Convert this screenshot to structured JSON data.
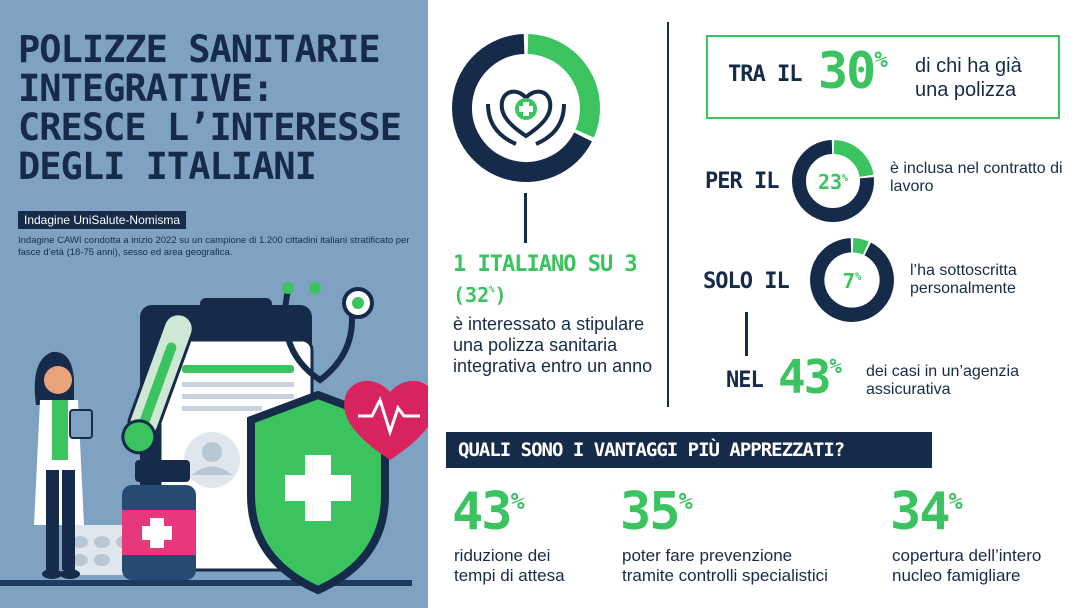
{
  "header": {
    "title_lines": [
      "POLIZZE SANITARIE",
      "INTEGRATIVE:",
      "CRESCE L’INTERESSE",
      "DEGLI ITALIANI"
    ],
    "survey_tag": "Indagine UniSalute-Nomisma",
    "survey_description": "Indagine CAWI condotta a inizio 2022 su un campione di 1.200 cittadini italiani stratificato per fasce d’età (18-75 anni), sesso ed area geografica."
  },
  "interest": {
    "headline": "1 ITALIANO SU 3",
    "pct_value": "32",
    "pct_symbol": "%",
    "pct_open": "(",
    "pct_close": ")",
    "text": "è interessato a stipulare una polizza sanitaria integrativa entro un anno",
    "share": 0.32
  },
  "existing": {
    "intro": "TRA IL",
    "value": "30",
    "symbol": "%",
    "text": "di chi ha già una polizza"
  },
  "breakdown": [
    {
      "keyword": "PER IL",
      "value": "23",
      "symbol": "%",
      "share": 0.23,
      "text": "è inclusa nel contratto di lavoro"
    },
    {
      "keyword": "SOLO IL",
      "value": "7",
      "symbol": "%",
      "share": 0.07,
      "text": "l’ha sottoscritta personalmente"
    }
  ],
  "agency": {
    "keyword": "NEL",
    "value": "43",
    "symbol": "%",
    "text": "dei casi in un’agenzia assicurativa"
  },
  "advantages": {
    "title": "QUALI SONO I VANTAGGI PIÙ APPREZZATI?",
    "items": [
      {
        "value": "43",
        "symbol": "%",
        "text_lines": [
          "riduzione dei",
          "tempi di attesa"
        ]
      },
      {
        "value": "35",
        "symbol": "%",
        "text_lines": [
          "poter fare prevenzione",
          "tramite controlli specialistici"
        ]
      },
      {
        "value": "34",
        "symbol": "%",
        "text_lines": [
          "copertura dell’intero",
          "nucleo famigliare"
        ]
      }
    ]
  },
  "colors": {
    "navy": "#162b4a",
    "green": "#3ac35f",
    "panel_blue": "#7fa1c2",
    "heart_pink": "#d9235f"
  },
  "icons": [
    "heart-hands-icon",
    "stethoscope-icon",
    "thermometer-icon",
    "clipboard-icon",
    "shield-cross-icon",
    "heart-pulse-icon",
    "medicine-jar-icon",
    "pill-blister-icon",
    "doctor-figure-icon"
  ]
}
